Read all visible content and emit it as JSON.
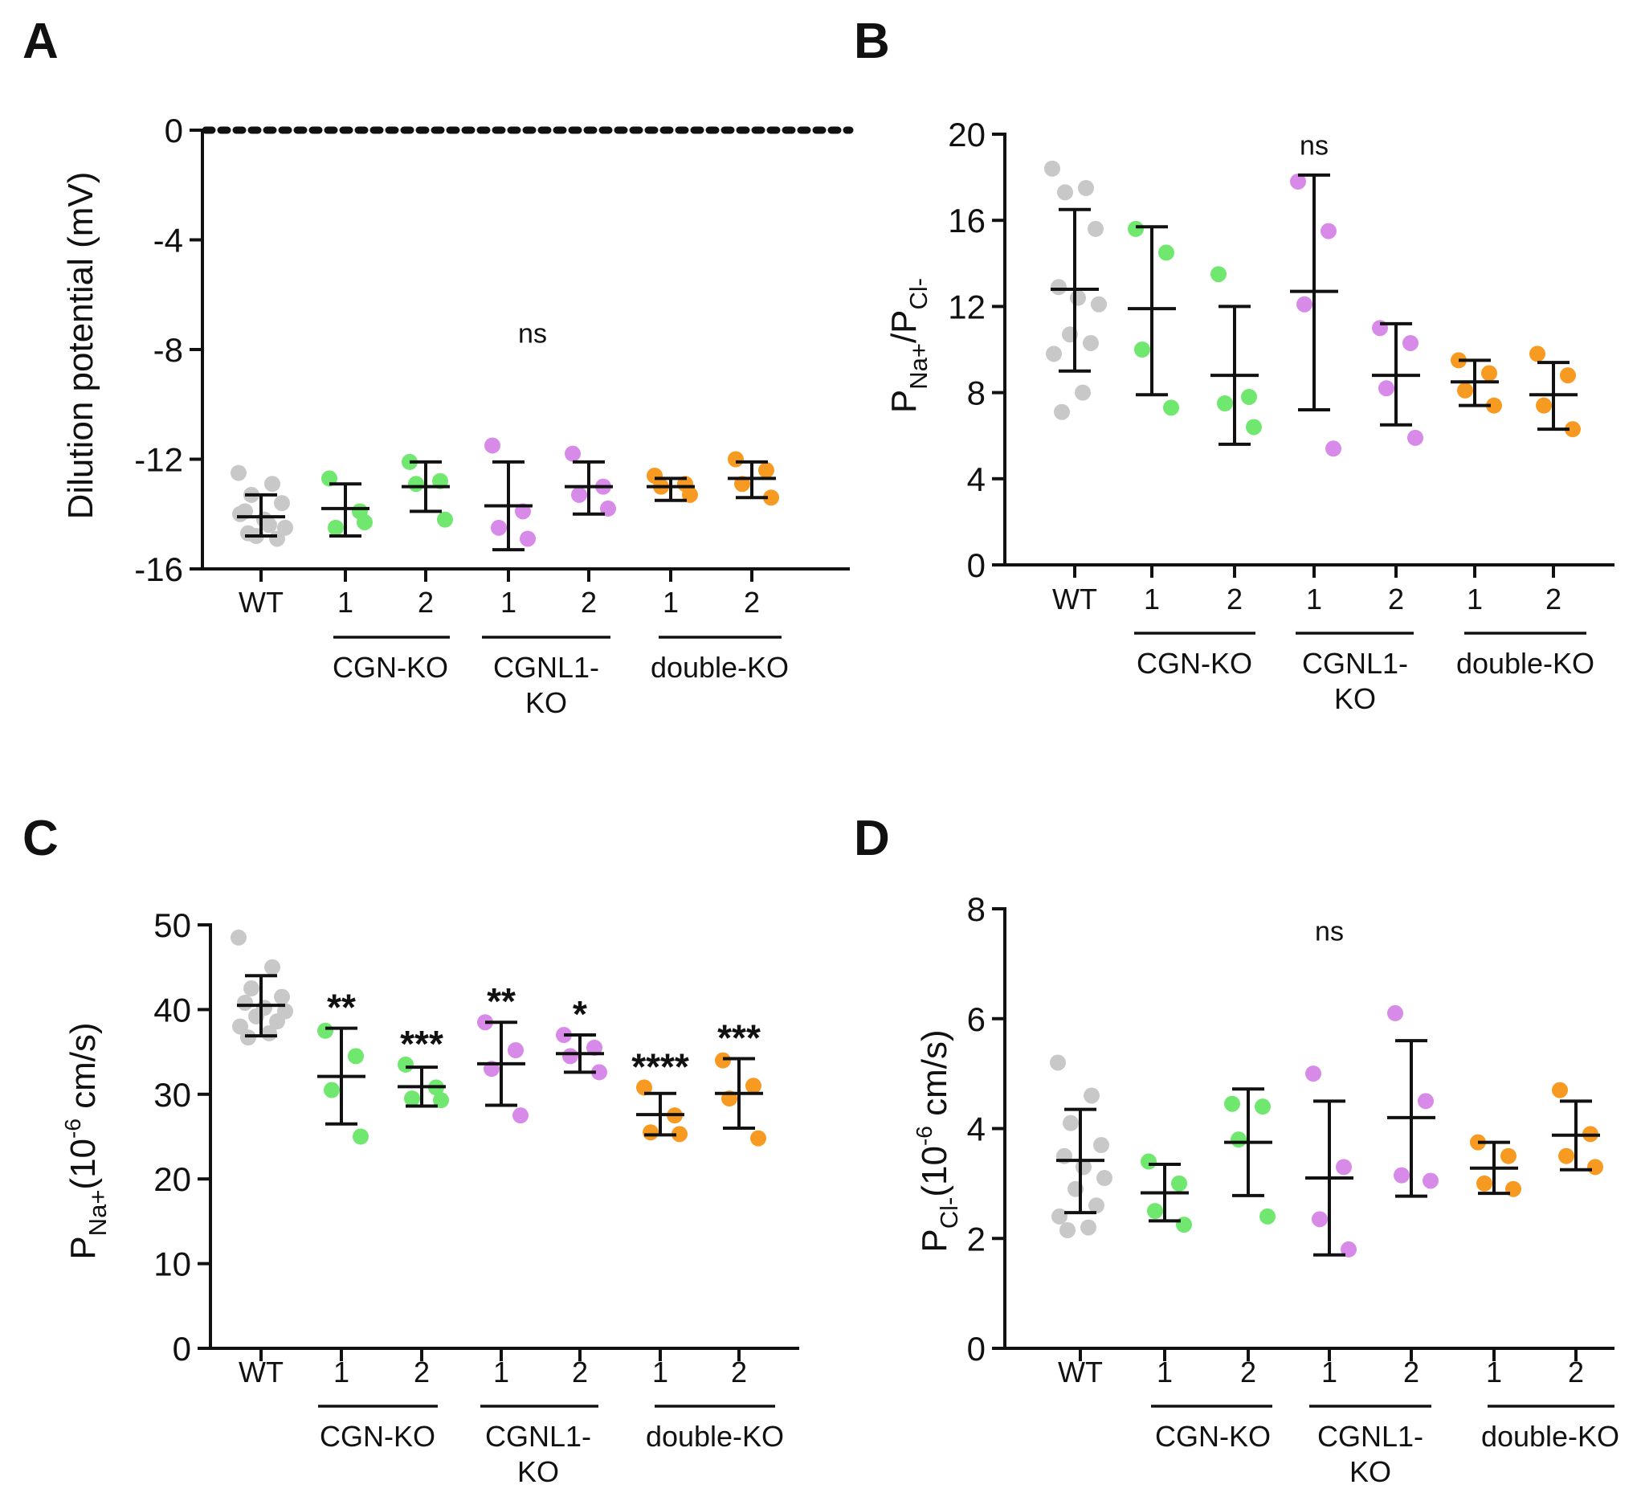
{
  "chart_data": [
    {
      "panel": "A",
      "type": "scatter",
      "title": "",
      "ylabel": "Dilution potential (mV)",
      "ylim": [
        -16,
        0
      ],
      "yticks": [
        0,
        -4,
        -8,
        -12,
        -16
      ],
      "categories": [
        "WT",
        "1",
        "2",
        "1",
        "2",
        "1",
        "2"
      ],
      "groups": [
        {
          "label": "CGN-KO",
          "from": 1,
          "to": 2
        },
        {
          "label": "CGNL1-\nKO",
          "from": 3,
          "to": 4
        },
        {
          "label": "double-KO",
          "from": 5,
          "to": 6
        }
      ],
      "reference_line": 0,
      "annotations": [
        {
          "text": "ns",
          "x": 3.3,
          "y": -7.4
        }
      ],
      "series": [
        {
          "name": "WT",
          "color": "#c8c8c8",
          "x": 0,
          "points": [
            -12.5,
            -12.9,
            -13.3,
            -13.6,
            -13.9,
            -14.2,
            -14.5,
            -14.8,
            -14.9,
            -14.0,
            -14.4,
            -14.7
          ],
          "mean": -14.1,
          "sd_low": -14.8,
          "sd_high": -13.3
        },
        {
          "name": "CGN-KO 1",
          "color": "#70e870",
          "x": 1,
          "points": [
            -12.7,
            -13.9,
            -14.5,
            -14.3
          ],
          "mean": -13.8,
          "sd_low": -14.8,
          "sd_high": -12.9
        },
        {
          "name": "CGN-KO 2",
          "color": "#70e870",
          "x": 2,
          "points": [
            -12.1,
            -12.8,
            -12.9,
            -14.2
          ],
          "mean": -13.0,
          "sd_low": -13.9,
          "sd_high": -12.1
        },
        {
          "name": "CGNL1-KO 1",
          "color": "#d88ae8",
          "x": 3,
          "points": [
            -11.5,
            -13.9,
            -14.5,
            -14.9
          ],
          "mean": -13.7,
          "sd_low": -15.3,
          "sd_high": -12.1
        },
        {
          "name": "CGNL1-KO 2",
          "color": "#d88ae8",
          "x": 4,
          "points": [
            -11.8,
            -13.0,
            -13.3,
            -13.8
          ],
          "mean": -13.0,
          "sd_low": -14.0,
          "sd_high": -12.1
        },
        {
          "name": "double-KO 1",
          "color": "#f79a22",
          "x": 5,
          "points": [
            -12.6,
            -12.9,
            -13.0,
            -13.3
          ],
          "mean": -13.0,
          "sd_low": -13.5,
          "sd_high": -12.7
        },
        {
          "name": "double-KO 2",
          "color": "#f79a22",
          "x": 6,
          "points": [
            -12.0,
            -12.4,
            -12.9,
            -13.4
          ],
          "mean": -12.7,
          "sd_low": -13.4,
          "sd_high": -12.1
        }
      ]
    },
    {
      "panel": "B",
      "type": "scatter",
      "title": "",
      "ylabel": {
        "main": "P",
        "sub1": "Na+",
        "slash": "/P",
        "sub2": "Cl-"
      },
      "ylim": [
        0,
        20
      ],
      "yticks": [
        0,
        4,
        8,
        12,
        16,
        20
      ],
      "categories": [
        "WT",
        "1",
        "2",
        "1",
        "2",
        "1",
        "2"
      ],
      "groups": [
        {
          "label": "CGN-KO",
          "from": 1,
          "to": 2
        },
        {
          "label": "CGNL1-\nKO",
          "from": 3,
          "to": 4
        },
        {
          "label": "double-KO",
          "from": 5,
          "to": 6
        }
      ],
      "annotations": [
        {
          "text": "ns",
          "x": 3.0,
          "y": 19.5
        }
      ],
      "series": [
        {
          "name": "WT",
          "color": "#c8c8c8",
          "x": 0,
          "points": [
            18.4,
            17.5,
            17.3,
            15.6,
            12.9,
            12.4,
            12.1,
            10.7,
            10.3,
            9.8,
            8.0,
            7.1
          ],
          "mean": 12.8,
          "sd_low": 9.0,
          "sd_high": 16.5
        },
        {
          "name": "CGN-KO 1",
          "color": "#70e870",
          "x": 1,
          "points": [
            15.6,
            14.5,
            10.0,
            7.3
          ],
          "mean": 11.9,
          "sd_low": 7.9,
          "sd_high": 15.7
        },
        {
          "name": "CGN-KO 2",
          "color": "#70e870",
          "x": 2,
          "points": [
            13.5,
            7.8,
            7.5,
            6.4
          ],
          "mean": 8.8,
          "sd_low": 5.6,
          "sd_high": 12.0
        },
        {
          "name": "CGNL1-KO 1",
          "color": "#d88ae8",
          "x": 3,
          "points": [
            17.8,
            15.5,
            12.1,
            5.4
          ],
          "mean": 12.7,
          "sd_low": 7.2,
          "sd_high": 18.1
        },
        {
          "name": "CGNL1-KO 2",
          "color": "#d88ae8",
          "x": 4,
          "points": [
            11.0,
            10.3,
            8.2,
            5.9
          ],
          "mean": 8.8,
          "sd_low": 6.5,
          "sd_high": 11.2
        },
        {
          "name": "double-KO 1",
          "color": "#f79a22",
          "x": 5,
          "points": [
            9.5,
            8.9,
            8.1,
            7.4
          ],
          "mean": 8.5,
          "sd_low": 7.4,
          "sd_high": 9.5
        },
        {
          "name": "double-KO 2",
          "color": "#f79a22",
          "x": 6,
          "points": [
            9.8,
            8.8,
            7.4,
            6.3
          ],
          "mean": 7.9,
          "sd_low": 6.3,
          "sd_high": 9.4
        }
      ]
    },
    {
      "panel": "C",
      "type": "scatter",
      "title": "",
      "ylabel": {
        "main": "P",
        "sub": "Na+",
        "rest": "(10",
        "sup": "-6",
        "unit": " cm/s)"
      },
      "ylim": [
        0,
        50
      ],
      "yticks": [
        0,
        10,
        20,
        30,
        40,
        50
      ],
      "categories": [
        "WT",
        "1",
        "2",
        "1",
        "2",
        "1",
        "2"
      ],
      "groups": [
        {
          "label": "CGN-KO",
          "from": 1,
          "to": 2
        },
        {
          "label": "CGNL1-\nKO",
          "from": 3,
          "to": 4
        },
        {
          "label": "double-KO",
          "from": 5,
          "to": 6
        }
      ],
      "significance": [
        {
          "x": 1,
          "text": "**"
        },
        {
          "x": 2,
          "text": "***"
        },
        {
          "x": 3,
          "text": "**"
        },
        {
          "x": 4,
          "text": "*"
        },
        {
          "x": 5,
          "text": "****"
        },
        {
          "x": 6,
          "text": "***"
        }
      ],
      "series": [
        {
          "name": "WT",
          "color": "#c8c8c8",
          "x": 0,
          "points": [
            48.5,
            45.0,
            42.5,
            41.5,
            40.8,
            40.2,
            39.8,
            39.2,
            38.6,
            38.0,
            37.2,
            36.7
          ],
          "mean": 40.5,
          "sd_low": 36.9,
          "sd_high": 44.0
        },
        {
          "name": "CGN-KO 1",
          "color": "#70e870",
          "x": 1,
          "points": [
            37.5,
            34.5,
            30.5,
            25.0
          ],
          "mean": 32.1,
          "sd_low": 26.5,
          "sd_high": 37.8
        },
        {
          "name": "CGN-KO 2",
          "color": "#70e870",
          "x": 2,
          "points": [
            33.5,
            30.8,
            29.5,
            29.3
          ],
          "mean": 30.9,
          "sd_low": 28.6,
          "sd_high": 33.2
        },
        {
          "name": "CGNL1-KO 1",
          "color": "#d88ae8",
          "x": 3,
          "points": [
            38.5,
            35.2,
            33.0,
            27.5
          ],
          "mean": 33.6,
          "sd_low": 28.7,
          "sd_high": 38.5
        },
        {
          "name": "CGNL1-KO 2",
          "color": "#d88ae8",
          "x": 4,
          "points": [
            37.0,
            35.5,
            34.5,
            32.6
          ],
          "mean": 34.8,
          "sd_low": 32.6,
          "sd_high": 37.0
        },
        {
          "name": "double-KO 1",
          "color": "#f79a22",
          "x": 5,
          "points": [
            30.8,
            27.5,
            25.5,
            25.3
          ],
          "mean": 27.6,
          "sd_low": 25.2,
          "sd_high": 30.1
        },
        {
          "name": "double-KO 2",
          "color": "#f79a22",
          "x": 6,
          "points": [
            34.0,
            31.0,
            29.5,
            24.8
          ],
          "mean": 30.1,
          "sd_low": 26.0,
          "sd_high": 34.2
        }
      ]
    },
    {
      "panel": "D",
      "type": "scatter",
      "title": "",
      "ylabel": {
        "main": "P",
        "sub": "Cl-",
        "rest": "(10",
        "sup": "-6",
        "unit": " cm/s)"
      },
      "ylim": [
        0,
        8
      ],
      "yticks": [
        0,
        2,
        4,
        6,
        8
      ],
      "categories": [
        "WT",
        "1",
        "2",
        "1",
        "2",
        "1",
        "2"
      ],
      "groups": [
        {
          "label": "CGN-KO",
          "from": 1,
          "to": 2
        },
        {
          "label": "CGNL1-\nKO",
          "from": 3,
          "to": 4
        },
        {
          "label": "double-KO",
          "from": 5,
          "to": 6
        }
      ],
      "annotations": [
        {
          "text": "ns",
          "x": 3.0,
          "y": 7.6
        }
      ],
      "series": [
        {
          "name": "WT",
          "color": "#c8c8c8",
          "x": 0,
          "points": [
            5.2,
            4.6,
            4.1,
            3.7,
            3.5,
            3.3,
            3.1,
            2.9,
            2.6,
            2.4,
            2.2,
            2.15
          ],
          "mean": 3.42,
          "sd_low": 2.47,
          "sd_high": 4.35
        },
        {
          "name": "CGN-KO 1",
          "color": "#70e870",
          "x": 1,
          "points": [
            3.4,
            3.0,
            2.5,
            2.25
          ],
          "mean": 2.83,
          "sd_low": 2.32,
          "sd_high": 3.35
        },
        {
          "name": "CGN-KO 2",
          "color": "#70e870",
          "x": 2,
          "points": [
            4.45,
            4.4,
            3.8,
            2.4
          ],
          "mean": 3.75,
          "sd_low": 2.78,
          "sd_high": 4.72
        },
        {
          "name": "CGNL1-KO 1",
          "color": "#d88ae8",
          "x": 3,
          "points": [
            5.0,
            3.3,
            2.35,
            1.8
          ],
          "mean": 3.1,
          "sd_low": 1.7,
          "sd_high": 4.5
        },
        {
          "name": "CGNL1-KO 2",
          "color": "#d88ae8",
          "x": 4,
          "points": [
            6.1,
            4.5,
            3.15,
            3.05
          ],
          "mean": 4.2,
          "sd_low": 2.77,
          "sd_high": 5.6
        },
        {
          "name": "double-KO 1",
          "color": "#f79a22",
          "x": 5,
          "points": [
            3.75,
            3.5,
            3.0,
            2.9
          ],
          "mean": 3.28,
          "sd_low": 2.82,
          "sd_high": 3.75
        },
        {
          "name": "double-KO 2",
          "color": "#f79a22",
          "x": 6,
          "points": [
            4.7,
            3.9,
            3.5,
            3.3
          ],
          "mean": 3.88,
          "sd_low": 3.25,
          "sd_high": 4.5
        }
      ]
    }
  ]
}
